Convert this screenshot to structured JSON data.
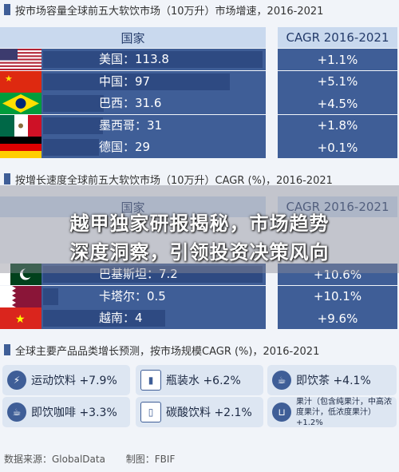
{
  "sections": {
    "s1_title": "按市场容量全球前五大软饮市场（10万升）市场增速，2016-2021",
    "s2_title": "按增长速度全球前五大软饮市场（10万升）CAGR (%)，2016-2021",
    "s3_title": "全球主要产品品类增长预测，按市场规模CAGR (%)，2016-2021"
  },
  "headers": {
    "country": "国家",
    "cagr": "CAGR 2016-2021"
  },
  "overlay": {
    "line1": "越甲独家研报揭秘，市场趋势",
    "line2": "深度洞察，引领投资决策风向"
  },
  "chart_data": [
    {
      "type": "bar",
      "title": "按市场容量全球前五大软饮市场（10万升）市场增速，2016-2021",
      "categories": [
        "美国",
        "中国",
        "巴西",
        "墨西哥",
        "德国"
      ],
      "series": [
        {
          "name": "",
          "values": [
            113.8,
            97,
            31.6,
            31,
            29
          ]
        }
      ],
      "cagr": [
        "+1.1%",
        "+5.1%",
        "+4.5%",
        "+1.8%",
        "+0.1%"
      ],
      "flags": [
        "usa",
        "china",
        "brazil",
        "mexico",
        "germany"
      ]
    },
    {
      "type": "bar",
      "title": "按增长速度全球前五大软饮市场（10万升）CAGR (%)，2016-2021",
      "categories": [
        "巴基斯坦",
        "卡塔尔",
        "越南"
      ],
      "series": [
        {
          "name": "",
          "values": [
            7.2,
            0.5,
            4
          ]
        }
      ],
      "cagr": [
        "+10.6%",
        "+10.1%",
        "+9.6%"
      ],
      "flags": [
        "pakistan",
        "qatar",
        "vietnam"
      ]
    },
    {
      "type": "table",
      "title": "全球主要产品品类增长预测，按市场规模CAGR (%)，2016-2021",
      "items": [
        {
          "label": "运动饮料 +7.9%",
          "icon": "energy-drink-icon"
        },
        {
          "label": "瓶装水 +6.2%",
          "icon": "bottled-water-icon"
        },
        {
          "label": "即饮茶 +4.1%",
          "icon": "tea-cup-icon"
        },
        {
          "label": "即饮咖啡 +3.3%",
          "icon": "coffee-icon"
        },
        {
          "label": "碳酸饮料 +2.1%",
          "icon": "soda-can-icon"
        },
        {
          "label": "果汁（包含纯果汁，中高浓度果汁，低浓度果汁）+1.2%",
          "icon": "juice-cup-icon"
        }
      ]
    }
  ],
  "footer": {
    "source": "数据来源：GlobalData",
    "org": "制图：FBIF"
  },
  "colors": {
    "accent": "#3f5e97",
    "bar": "#2e4a82",
    "header": "#c9d9ee",
    "background": "#f1f4f9"
  }
}
